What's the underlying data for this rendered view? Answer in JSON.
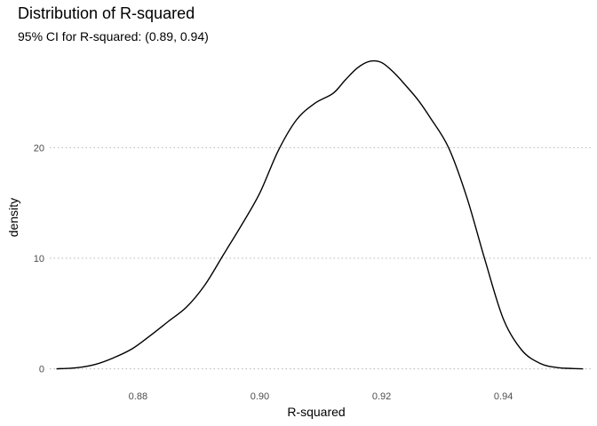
{
  "chart_data": {
    "type": "line",
    "title": "Distribution of R-squared",
    "subtitle": "95% CI for R-squared: (0.89, 0.94)",
    "xlabel": "R-squared",
    "ylabel": "density",
    "xlim": [
      0.8655,
      0.9545
    ],
    "ylim": [
      -1.4,
      28.7
    ],
    "x_ticks": [
      {
        "value": 0.88,
        "label": "0.88"
      },
      {
        "value": 0.9,
        "label": "0.90"
      },
      {
        "value": 0.92,
        "label": "0.92"
      },
      {
        "value": 0.94,
        "label": "0.94"
      }
    ],
    "y_ticks": [
      {
        "value": 0,
        "label": "0"
      },
      {
        "value": 10,
        "label": "10"
      },
      {
        "value": 20,
        "label": "20"
      }
    ],
    "grid": {
      "horizontal_major": true,
      "vertical": false,
      "style": "dotted"
    },
    "legend": "none",
    "series": [
      {
        "color": "#000000",
        "x": [
          0.8666,
          0.87,
          0.873,
          0.876,
          0.879,
          0.882,
          0.885,
          0.888,
          0.891,
          0.894,
          0.897,
          0.9,
          0.903,
          0.906,
          0.909,
          0.912,
          0.914,
          0.916,
          0.918,
          0.92,
          0.922,
          0.924,
          0.926,
          0.928,
          0.931,
          0.934,
          0.937,
          0.94,
          0.943,
          0.946,
          0.949,
          0.9531
        ],
        "y": [
          0.0,
          0.1,
          0.4,
          1.0,
          1.8,
          3.0,
          4.3,
          5.6,
          7.6,
          10.3,
          13.0,
          15.9,
          19.7,
          22.5,
          24.0,
          24.9,
          26.1,
          27.2,
          27.8,
          27.7,
          26.8,
          25.6,
          24.3,
          22.7,
          20.0,
          15.5,
          9.8,
          4.5,
          1.7,
          0.5,
          0.1,
          0.0
        ]
      }
    ]
  }
}
